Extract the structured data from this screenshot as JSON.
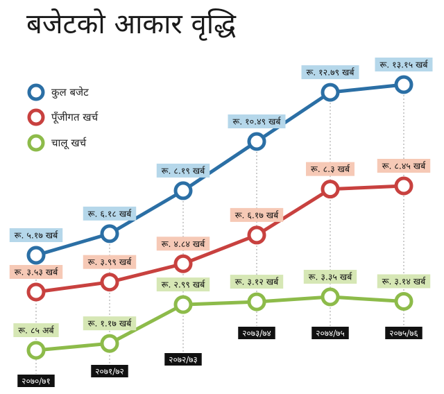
{
  "title": "बजेटको आकार वृद्धि",
  "legend": [
    {
      "label": "कुल बजेट",
      "color": "#2b6fa5"
    },
    {
      "label": "पूँजीगत खर्च",
      "color": "#c8413f"
    },
    {
      "label": "चालू खर्च",
      "color": "#8dbb4a"
    }
  ],
  "colors": {
    "blue_label_bg": "#b5d7ea",
    "red_label_bg": "#f6c9b6",
    "green_label_bg": "#d6e7b5",
    "year_bg": "#111111"
  },
  "chart_data": {
    "type": "line",
    "categories": [
      "२०७०/७१",
      "२०७१/७२",
      "२०७२/७३",
      "२०७३/७४",
      "२०७४/७५",
      "२०७५/७६"
    ],
    "series": [
      {
        "name": "कुल बजेट",
        "values": [
          517,
          618,
          819,
          1049,
          1279,
          1315
        ],
        "labels": [
          "रू. ५.१७ खर्ब",
          "रू. ६.१८ खर्ब",
          "रू. ८.१९ खर्ब",
          "रू. १०.४९ खर्ब",
          "रू. १२.७९ खर्ब",
          "रू. १३.१५ खर्ब"
        ]
      },
      {
        "name": "पूँजीगत खर्च",
        "values": [
          353,
          399,
          484,
          617,
          830,
          845
        ],
        "labels": [
          "रू. ३.५३ खर्ब",
          "रू. ३.९९ खर्ब",
          "रू. ४.८४ खर्ब",
          "रू. ६.१७ खर्ब",
          "रू. ८.३ खर्ब",
          "रू. ८.४५ खर्ब"
        ]
      },
      {
        "name": "चालू खर्च",
        "values": [
          85,
          117,
          299,
          312,
          335,
          314
        ],
        "labels": [
          "रू. ८५ अर्ब",
          "रू. १.१७ खर्ब",
          "रू. २.९९ खर्ब",
          "रू. ३.१२ खर्ब",
          "रू. ३.३५ खर्ब",
          "रू. ३.१४ खर्ब"
        ]
      }
    ]
  }
}
